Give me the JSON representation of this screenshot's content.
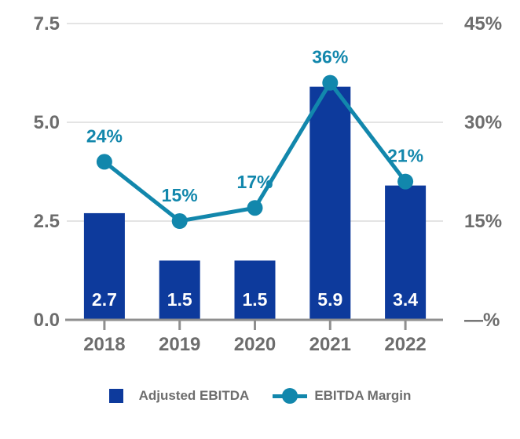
{
  "chart_data": {
    "type": "bar+line",
    "categories": [
      "2018",
      "2019",
      "2020",
      "2021",
      "2022"
    ],
    "series": [
      {
        "name": "Adjusted EBITDA",
        "type": "bar",
        "axis": "left",
        "values": [
          2.7,
          1.5,
          1.5,
          5.9,
          3.4
        ],
        "labels": [
          "2.7",
          "1.5",
          "1.5",
          "5.9",
          "3.4"
        ],
        "color": "#0d3a9c"
      },
      {
        "name": "EBITDA Margin",
        "type": "line",
        "axis": "right",
        "values": [
          24,
          15,
          17,
          36,
          21
        ],
        "labels": [
          "24%",
          "15%",
          "17%",
          "36%",
          "21%"
        ],
        "color": "#1287ac"
      }
    ],
    "left_axis": {
      "range": [
        0,
        7.5
      ],
      "ticks": [
        {
          "value": 0,
          "label": "0.0"
        },
        {
          "value": 2.5,
          "label": "2.5"
        },
        {
          "value": 5,
          "label": "5.0"
        },
        {
          "value": 7.5,
          "label": "7.5"
        }
      ]
    },
    "right_axis": {
      "range": [
        0,
        45
      ],
      "ticks": [
        {
          "value": 0,
          "label": "—%"
        },
        {
          "value": 15,
          "label": "15%"
        },
        {
          "value": 30,
          "label": "30%"
        },
        {
          "value": 45,
          "label": "45%"
        }
      ]
    },
    "grid": true,
    "legend_position": "bottom"
  },
  "legend": {
    "items": [
      {
        "label": "Adjusted EBITDA",
        "marker": "square",
        "color": "#0d3a9c"
      },
      {
        "label": "EBITDA Margin",
        "marker": "line-dot",
        "color": "#1287ac"
      }
    ]
  },
  "colors": {
    "bar": "#0d3a9c",
    "line": "#1287ac",
    "axis_text": "#6d6d6d",
    "axis_line": "#8f8f8f",
    "gridline": "#e4e4e4",
    "bar_value_text": "#ffffff",
    "background": "#ffffff"
  }
}
